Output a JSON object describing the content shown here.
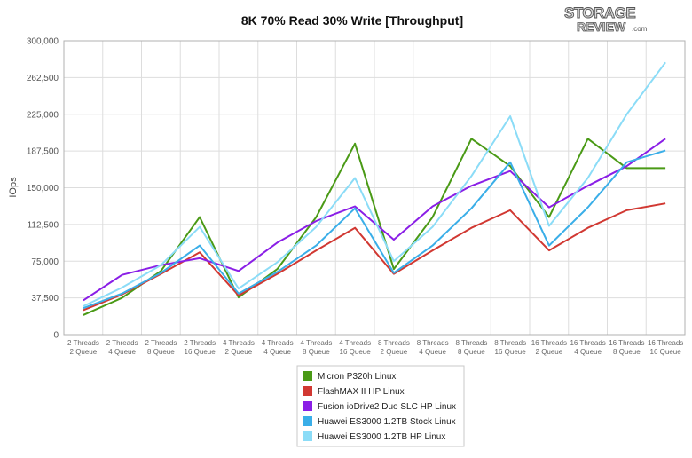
{
  "logo": {
    "line1": "STORAGE",
    "line2": "REVIEW",
    "suffix": ".com"
  },
  "chart_data": {
    "type": "line",
    "title": "8K 70% Read 30% Write [Throughput]",
    "xlabel": "",
    "ylabel": "IOps",
    "ylim": [
      0,
      300000
    ],
    "yticks": [
      "0",
      "37,500",
      "75,000",
      "112,500",
      "150,000",
      "187,500",
      "225,000",
      "262,500",
      "300,000"
    ],
    "grid": true,
    "legend_position": "bottom",
    "categories": [
      [
        "2 Threads",
        "2 Queue"
      ],
      [
        "2 Threads",
        "4 Queue"
      ],
      [
        "2 Threads",
        "8 Queue"
      ],
      [
        "2 Threads",
        "16 Queue"
      ],
      [
        "4 Threads",
        "2 Queue"
      ],
      [
        "4 Threads",
        "4 Queue"
      ],
      [
        "4 Threads",
        "8 Queue"
      ],
      [
        "4 Threads",
        "16 Queue"
      ],
      [
        "8 Threads",
        "2 Queue"
      ],
      [
        "8 Threads",
        "4 Queue"
      ],
      [
        "8 Threads",
        "8 Queue"
      ],
      [
        "8 Threads",
        "16 Queue"
      ],
      [
        "16 Threads",
        "2 Queue"
      ],
      [
        "16 Threads",
        "4 Queue"
      ],
      [
        "16 Threads",
        "8 Queue"
      ],
      [
        "16 Threads",
        "16 Queue"
      ]
    ],
    "series": [
      {
        "name": "Micron P320h Linux",
        "color": "#4a9a16",
        "values": [
          20000,
          37500,
          65000,
          120000,
          38000,
          67000,
          120000,
          195000,
          67000,
          120000,
          200000,
          172000,
          120000,
          200000,
          170000,
          170000
        ]
      },
      {
        "name": "FlashMAX II HP Linux",
        "color": "#d13832",
        "values": [
          25000,
          41000,
          62000,
          84000,
          40000,
          62000,
          86000,
          109000,
          62000,
          86000,
          109000,
          127000,
          86000,
          109000,
          127000,
          134000
        ]
      },
      {
        "name": "Fusion ioDrive2 Duo SLC HP Linux",
        "color": "#8a1ee6",
        "values": [
          35000,
          61000,
          71000,
          78000,
          65000,
          94000,
          116000,
          131000,
          97000,
          131000,
          152000,
          167000,
          130000,
          152000,
          172000,
          200000
        ]
      },
      {
        "name": "Huawei ES3000 1.2TB Stock Linux",
        "color": "#3aaee8",
        "values": [
          27000,
          42000,
          63000,
          91000,
          42000,
          64000,
          91000,
          129000,
          63000,
          91000,
          129000,
          176000,
          91000,
          130000,
          176000,
          188000
        ]
      },
      {
        "name": "Huawei ES3000 1.2TB HP Linux",
        "color": "#8bdcf7",
        "values": [
          29000,
          48000,
          71000,
          110000,
          47000,
          74000,
          110000,
          160000,
          75000,
          110000,
          162000,
          223000,
          111000,
          160000,
          225000,
          278000
        ]
      }
    ]
  }
}
